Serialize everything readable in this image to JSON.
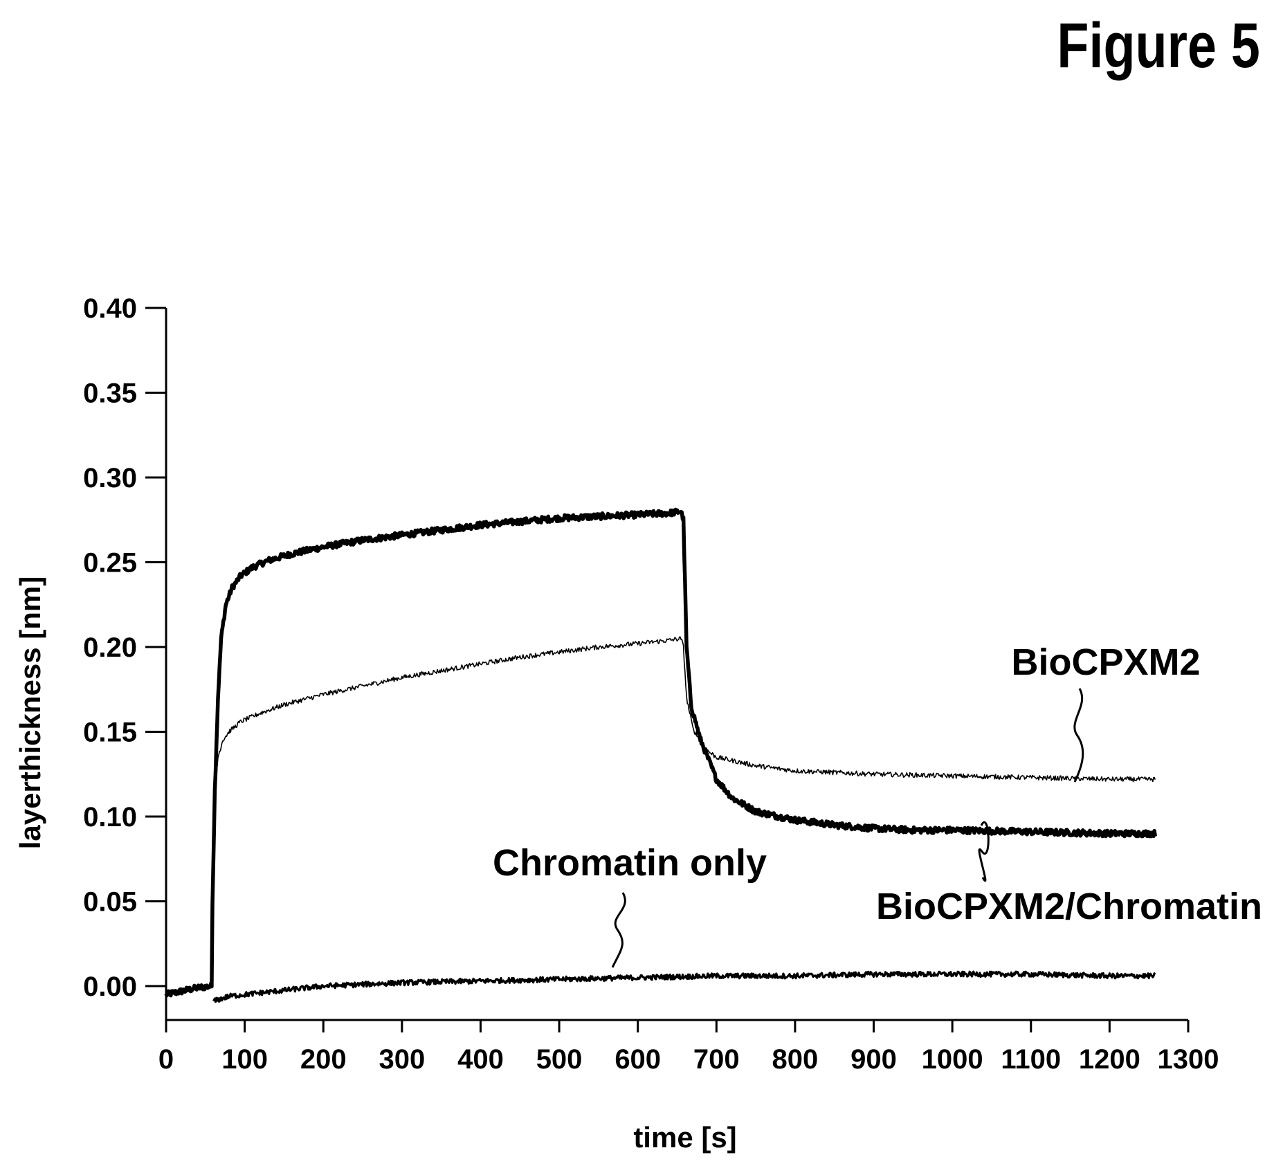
{
  "figure": {
    "title": "Figure 5"
  },
  "chart_data": {
    "type": "line",
    "xlabel": "time [s]",
    "ylabel": "layerthickness [nm]",
    "xlim": [
      0,
      1300
    ],
    "ylim": [
      -0.02,
      0.4
    ],
    "x_ticks": [
      "0",
      "100",
      "200",
      "300",
      "400",
      "500",
      "600",
      "700",
      "800",
      "900",
      "1000",
      "1100",
      "1200",
      "1300"
    ],
    "y_ticks": [
      "0.00",
      "0.05",
      "0.10",
      "0.15",
      "0.20",
      "0.25",
      "0.30",
      "0.35",
      "0.40"
    ],
    "grid": false,
    "legend": "none (inline annotations)",
    "series": [
      {
        "name": "BioCPXM2/Chromatin",
        "color": "#000000",
        "line": "thick",
        "points": [
          [
            0,
            -0.005
          ],
          [
            20,
            -0.003
          ],
          [
            40,
            -0.001
          ],
          [
            58,
            0.0
          ],
          [
            59,
            0.05
          ],
          [
            62,
            0.115
          ],
          [
            66,
            0.17
          ],
          [
            70,
            0.205
          ],
          [
            76,
            0.225
          ],
          [
            84,
            0.235
          ],
          [
            95,
            0.242
          ],
          [
            110,
            0.247
          ],
          [
            130,
            0.251
          ],
          [
            160,
            0.255
          ],
          [
            200,
            0.259
          ],
          [
            250,
            0.263
          ],
          [
            300,
            0.266
          ],
          [
            350,
            0.269
          ],
          [
            400,
            0.272
          ],
          [
            450,
            0.274
          ],
          [
            500,
            0.276
          ],
          [
            550,
            0.277
          ],
          [
            600,
            0.278
          ],
          [
            640,
            0.279
          ],
          [
            655,
            0.28
          ],
          [
            658,
            0.275
          ],
          [
            662,
            0.2
          ],
          [
            668,
            0.165
          ],
          [
            680,
            0.145
          ],
          [
            700,
            0.122
          ],
          [
            720,
            0.111
          ],
          [
            750,
            0.103
          ],
          [
            800,
            0.098
          ],
          [
            850,
            0.095
          ],
          [
            900,
            0.093
          ],
          [
            950,
            0.092
          ],
          [
            1000,
            0.092
          ],
          [
            1100,
            0.091
          ],
          [
            1200,
            0.09
          ],
          [
            1258,
            0.09
          ]
        ]
      },
      {
        "name": "BioCPXM2",
        "color": "#000000",
        "line": "thin",
        "points": [
          [
            58,
            0.0
          ],
          [
            59,
            0.05
          ],
          [
            62,
            0.115
          ],
          [
            66,
            0.135
          ],
          [
            72,
            0.145
          ],
          [
            80,
            0.15
          ],
          [
            95,
            0.156
          ],
          [
            120,
            0.161
          ],
          [
            150,
            0.166
          ],
          [
            200,
            0.172
          ],
          [
            250,
            0.177
          ],
          [
            300,
            0.182
          ],
          [
            350,
            0.186
          ],
          [
            400,
            0.19
          ],
          [
            450,
            0.194
          ],
          [
            500,
            0.197
          ],
          [
            550,
            0.2
          ],
          [
            600,
            0.202
          ],
          [
            640,
            0.204
          ],
          [
            655,
            0.205
          ],
          [
            658,
            0.2
          ],
          [
            662,
            0.17
          ],
          [
            670,
            0.152
          ],
          [
            685,
            0.14
          ],
          [
            700,
            0.135
          ],
          [
            750,
            0.13
          ],
          [
            800,
            0.127
          ],
          [
            900,
            0.125
          ],
          [
            1000,
            0.124
          ],
          [
            1100,
            0.123
          ],
          [
            1200,
            0.122
          ],
          [
            1258,
            0.122
          ]
        ]
      },
      {
        "name": "Chromatin only",
        "color": "#000000",
        "line": "medium",
        "points": [
          [
            60,
            -0.009
          ],
          [
            80,
            -0.006
          ],
          [
            120,
            -0.004
          ],
          [
            200,
            0.0
          ],
          [
            300,
            0.002
          ],
          [
            400,
            0.003
          ],
          [
            500,
            0.004
          ],
          [
            600,
            0.005
          ],
          [
            700,
            0.006
          ],
          [
            800,
            0.006
          ],
          [
            900,
            0.007
          ],
          [
            1000,
            0.007
          ],
          [
            1100,
            0.007
          ],
          [
            1200,
            0.006
          ],
          [
            1258,
            0.006
          ]
        ]
      }
    ],
    "annotations": [
      {
        "text": "BioCPXM2",
        "series": "BioCPXM2"
      },
      {
        "text": "BioCPXM2/Chromatin",
        "series": "BioCPXM2/Chromatin"
      },
      {
        "text": "Chromatin only",
        "series": "Chromatin only"
      }
    ]
  }
}
